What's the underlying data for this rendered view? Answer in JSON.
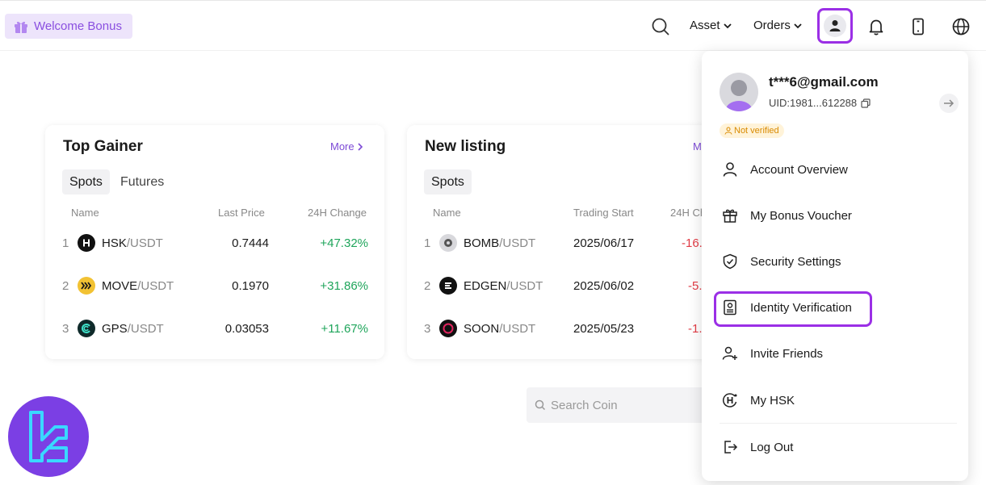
{
  "header": {
    "welcome_label": "Welcome Bonus",
    "asset_label": "Asset",
    "orders_label": "Orders",
    "icons": [
      "search-icon",
      "chevron-down-icon",
      "user-icon",
      "bell-icon",
      "mobile-icon",
      "globe-icon"
    ]
  },
  "top_gainer": {
    "title": "Top Gainer",
    "more_label": "More",
    "tabs": [
      "Spots",
      "Futures"
    ],
    "columns": [
      "Name",
      "Last Price",
      "24H Change"
    ],
    "rows": [
      {
        "index": "1",
        "base": "HSK",
        "quote": "/USDT",
        "price": "0.7444",
        "change": "+47.32%"
      },
      {
        "index": "2",
        "base": "MOVE",
        "quote": "/USDT",
        "price": "0.1970",
        "change": "+31.86%"
      },
      {
        "index": "3",
        "base": "GPS",
        "quote": "/USDT",
        "price": "0.03053",
        "change": "+11.67%"
      }
    ]
  },
  "new_listing": {
    "title": "New listing",
    "more_label": "M",
    "tabs": [
      "Spots"
    ],
    "columns": [
      "Name",
      "Trading Start",
      "24H Ch"
    ],
    "rows": [
      {
        "index": "1",
        "base": "BOMB",
        "quote": "/USDT",
        "start": "2025/06/17",
        "change": "-16."
      },
      {
        "index": "2",
        "base": "EDGEN",
        "quote": "/USDT",
        "start": "2025/06/02",
        "change": "-5."
      },
      {
        "index": "3",
        "base": "SOON",
        "quote": "/USDT",
        "start": "2025/05/23",
        "change": "-1."
      }
    ]
  },
  "search": {
    "placeholder": "Search Coin"
  },
  "account_menu": {
    "email": "t***6@gmail.com",
    "uid": "UID:1981...612288",
    "status_badge": "Not verified",
    "items": [
      {
        "label": "Account Overview",
        "icon": "user-icon"
      },
      {
        "label": "My Bonus Voucher",
        "icon": "gift-icon"
      },
      {
        "label": "Security Settings",
        "icon": "shield-icon"
      },
      {
        "label": "Identity Verification",
        "icon": "id-card-icon"
      },
      {
        "label": "Invite Friends",
        "icon": "add-user-icon"
      },
      {
        "label": "My HSK",
        "icon": "hsk-coin-icon"
      },
      {
        "label": "Log Out",
        "icon": "logout-icon"
      }
    ]
  },
  "colors": {
    "accent": "#8a4fe0",
    "highlight": "#9b2fe6",
    "up": "#1fa55b",
    "down": "#e23b45",
    "warning": "#d98a00"
  }
}
